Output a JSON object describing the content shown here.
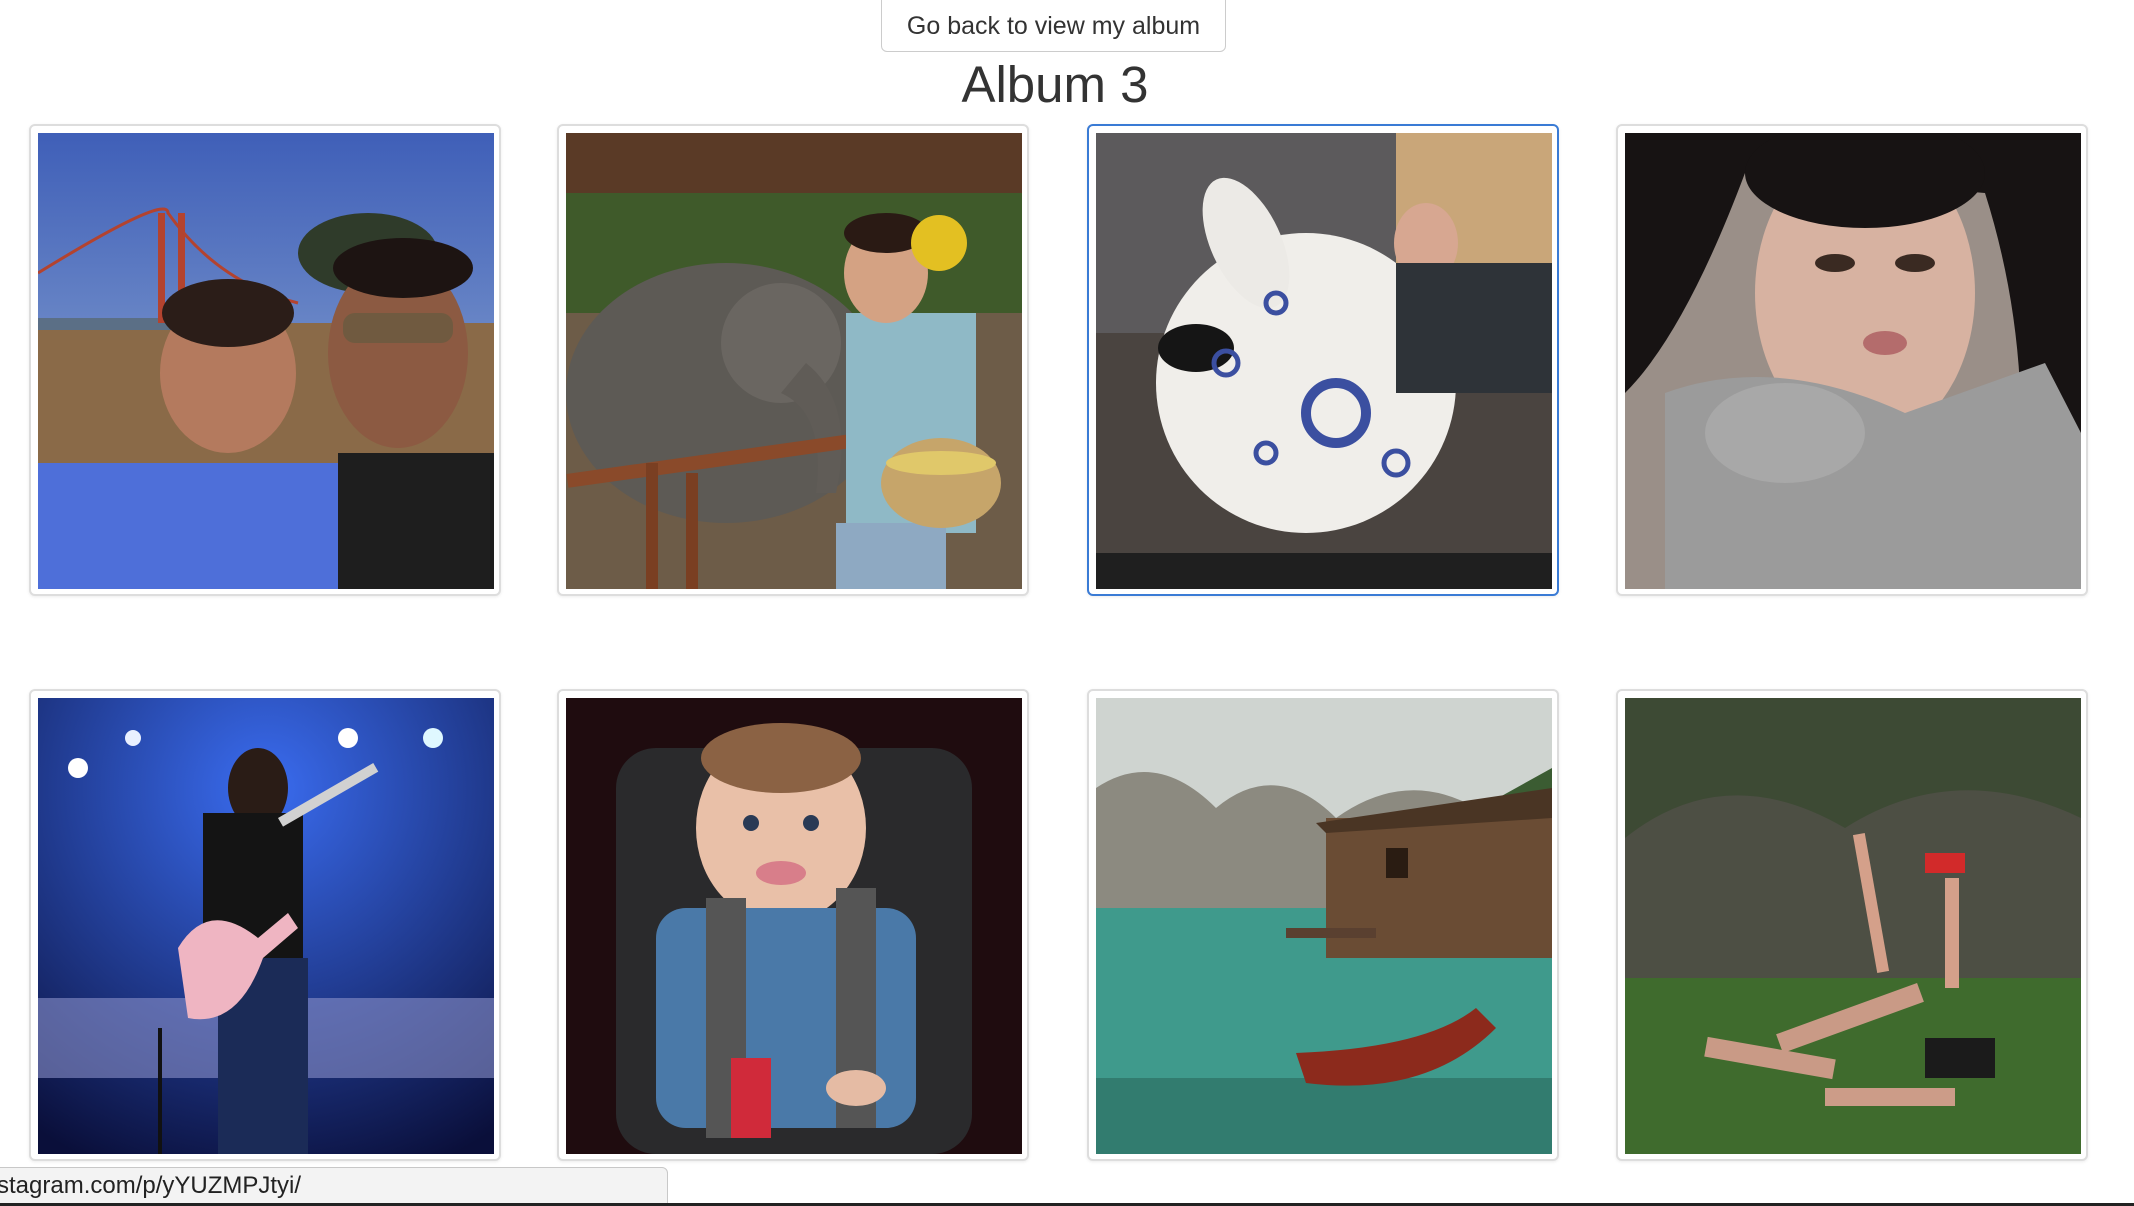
{
  "back_button": {
    "label": "Go back to view my album"
  },
  "album": {
    "title": "Album 3",
    "photos": [
      {
        "alt": "Two friends selfie near the Golden Gate Bridge"
      },
      {
        "alt": "Man feeding an elephant with a basket"
      },
      {
        "alt": "Man beside a large white ceramic pig"
      },
      {
        "alt": "Woman with long dark hair in a grey sweater"
      },
      {
        "alt": "Guitarist performing on stage under blue lights"
      },
      {
        "alt": "Smiling baby in a plaid shirt in a car seat"
      },
      {
        "alt": "Wooden boathouse on a turquoise mountain lake"
      },
      {
        "alt": "Acrobats balancing on grass before willow trees"
      }
    ]
  },
  "status_bar": {
    "url": "stagram.com/p/yYUZMPJtyi/"
  },
  "colors": {
    "focus_border": "#3a7bd5",
    "thumb_border": "#dddddd"
  }
}
